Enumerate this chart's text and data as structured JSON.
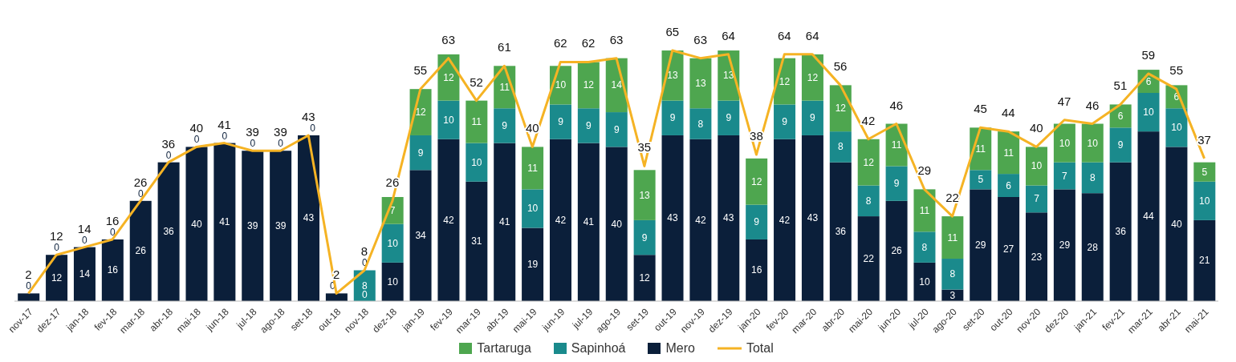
{
  "chart_data": {
    "type": "bar",
    "stacked": true,
    "legend": "bottom",
    "grid": false,
    "categories": [
      "nov-17",
      "dez-17",
      "jan-18",
      "fev-18",
      "mar-18",
      "abr-18",
      "mai-18",
      "jun-18",
      "jul-18",
      "ago-18",
      "set-18",
      "out-18",
      "nov-18",
      "dez-18",
      "jan-19",
      "fev-19",
      "mar-19",
      "abr-19",
      "mai-19",
      "jun-19",
      "jul-19",
      "ago-19",
      "set-19",
      "out-19",
      "nov-19",
      "dez-19",
      "jan-20",
      "fev-20",
      "mar-20",
      "abr-20",
      "mai-20",
      "jun-20",
      "jul-20",
      "ago-20",
      "set-20",
      "out-20",
      "nov-20",
      "dez-20",
      "jan-21",
      "fev-21",
      "mar-21",
      "abr-21",
      "mai-21"
    ],
    "series": [
      {
        "name": "Mero",
        "color": "#0b1f3a",
        "values": [
          2,
          12,
          14,
          16,
          26,
          36,
          40,
          41,
          39,
          39,
          43,
          2,
          0,
          10,
          34,
          42,
          31,
          41,
          19,
          42,
          41,
          40,
          12,
          43,
          42,
          43,
          16,
          42,
          43,
          36,
          22,
          26,
          10,
          3,
          29,
          27,
          23,
          29,
          28,
          36,
          44,
          40,
          21
        ],
        "value_labels": [
          null,
          "12",
          "14",
          "16",
          "26",
          "36",
          "40",
          "41",
          "39",
          "39",
          "43",
          null,
          "0",
          "10",
          "34",
          "42",
          "31",
          "41",
          "19",
          "42",
          "41",
          "40",
          "12",
          "43",
          "42",
          "43",
          "16",
          "42",
          "43",
          "36",
          "22",
          "26",
          "10",
          "3",
          "29",
          "27",
          "23",
          "29",
          "28",
          "36",
          "44",
          "40",
          "21"
        ]
      },
      {
        "name": "Sapinhoá",
        "color": "#1a8a8c",
        "values": [
          0,
          0,
          0,
          0,
          0,
          0,
          0,
          0,
          0,
          0,
          0,
          0,
          8,
          10,
          9,
          10,
          10,
          9,
          10,
          9,
          9,
          9,
          9,
          9,
          8,
          9,
          9,
          9,
          9,
          8,
          8,
          9,
          8,
          8,
          5,
          6,
          7,
          7,
          8,
          9,
          10,
          10,
          10
        ],
        "value_labels": [
          null,
          null,
          null,
          null,
          null,
          null,
          null,
          null,
          null,
          null,
          null,
          null,
          "8",
          "10",
          "9",
          "10",
          "10",
          "9",
          "10",
          "9",
          "9",
          "9",
          "9",
          "9",
          "8",
          "9",
          "9",
          "9",
          "9",
          "8",
          "8",
          "9",
          "8",
          "8",
          "5",
          "6",
          "7",
          "7",
          "8",
          "9",
          "10",
          "10",
          "10"
        ]
      },
      {
        "name": "Tartaruga",
        "color": "#4ea64f",
        "values": [
          0,
          0,
          0,
          0,
          0,
          0,
          0,
          0,
          0,
          0,
          0,
          0,
          0,
          7,
          12,
          12,
          11,
          11,
          11,
          10,
          12,
          14,
          13,
          13,
          13,
          13,
          12,
          12,
          12,
          12,
          12,
          11,
          11,
          11,
          11,
          11,
          10,
          10,
          10,
          6,
          6,
          6,
          5
        ],
        "value_labels": [
          "0",
          "0",
          "0",
          "0",
          "0",
          "0",
          "0",
          "0",
          "0",
          "0",
          "0",
          "0",
          "0",
          "7",
          "12",
          "12",
          "11",
          "11",
          "11",
          "10",
          "12",
          "14",
          "13",
          "13",
          "13",
          "13",
          "12",
          "12",
          "12",
          "12",
          "12",
          "11",
          "11",
          "11",
          "11",
          "11",
          "10",
          "10",
          "10",
          "6",
          "6",
          "6",
          "5"
        ]
      },
      {
        "name": "Total",
        "type": "line",
        "color": "#f5b324",
        "values": [
          2,
          12,
          14,
          16,
          26,
          36,
          40,
          41,
          39,
          39,
          43,
          2,
          8,
          26,
          55,
          63,
          52,
          61,
          40,
          62,
          62,
          63,
          35,
          65,
          63,
          64,
          38,
          64,
          64,
          56,
          42,
          46,
          29,
          22,
          45,
          44,
          40,
          47,
          46,
          51,
          59,
          55,
          37
        ],
        "data_labels": true
      }
    ]
  }
}
